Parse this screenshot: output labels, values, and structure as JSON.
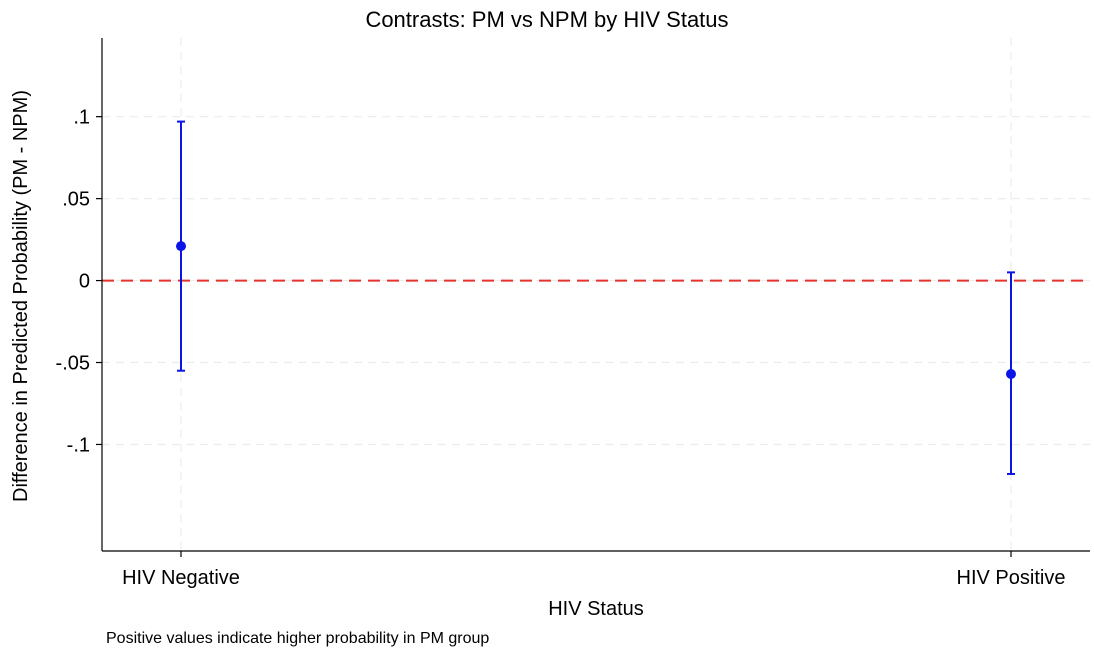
{
  "chart_data": {
    "type": "scatter",
    "title": "Contrasts: PM vs NPM by HIV Status",
    "xlabel": "HIV Status",
    "ylabel": "Difference in Predicted Probability (PM - NPM)",
    "note": "Positive values indicate higher probability in PM group",
    "categories": [
      "HIV Negative",
      "HIV Positive"
    ],
    "series": [
      {
        "values": [
          0.021,
          -0.057
        ],
        "ci_lower": [
          -0.055,
          -0.118
        ],
        "ci_upper": [
          0.097,
          0.005
        ]
      }
    ],
    "yticks": [
      0.1,
      0.05,
      0,
      -0.05,
      -0.1
    ],
    "ytick_labels": [
      ".1",
      ".05",
      "0",
      "-.05",
      "-.1"
    ],
    "ylim": [
      -0.165,
      0.148
    ],
    "reference_line": {
      "y": 0,
      "color": "#e8322d",
      "style": "dashed"
    },
    "grid": true,
    "colors": {
      "marker": "#0a14e6",
      "reference": "#e8322d",
      "grid": "#ececec"
    }
  }
}
